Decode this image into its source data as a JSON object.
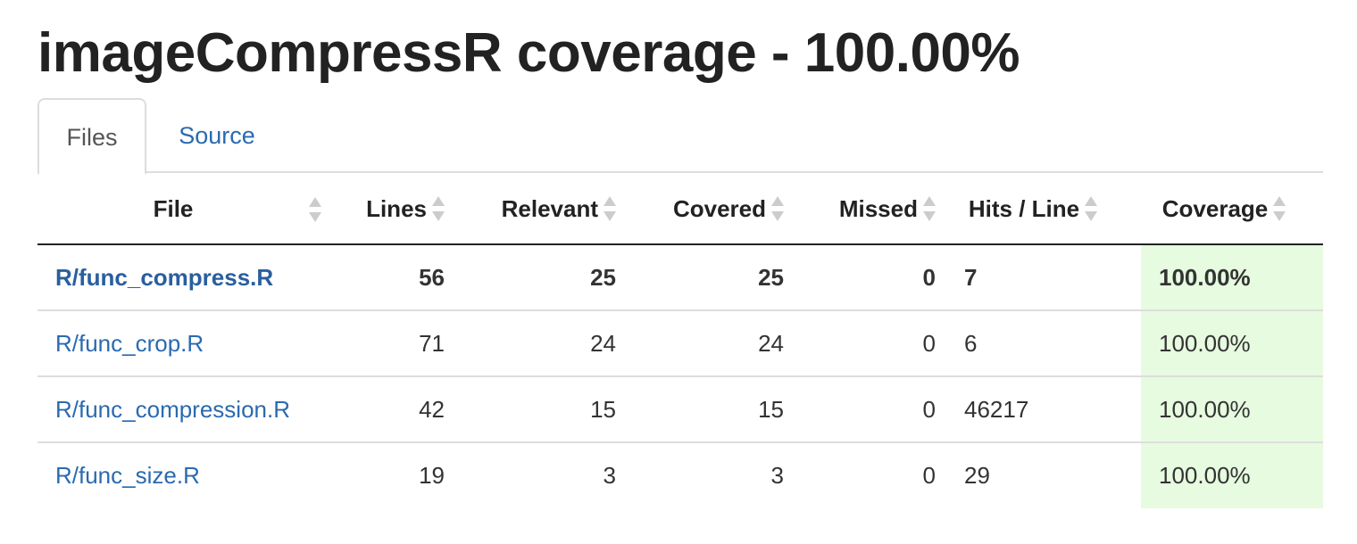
{
  "title": "imageCompressR coverage - 100.00%",
  "tabs": [
    {
      "label": "Files"
    },
    {
      "label": "Source"
    }
  ],
  "table": {
    "headers": [
      "File",
      "Lines",
      "Relevant",
      "Covered",
      "Missed",
      "Hits / Line",
      "Coverage"
    ],
    "rows": [
      {
        "file": "R/func_compress.R",
        "lines": "56",
        "relevant": "25",
        "covered": "25",
        "missed": "0",
        "hits": "7",
        "coverage": "100.00%"
      },
      {
        "file": "R/func_crop.R",
        "lines": "71",
        "relevant": "24",
        "covered": "24",
        "missed": "0",
        "hits": "6",
        "coverage": "100.00%"
      },
      {
        "file": "R/func_compression.R",
        "lines": "42",
        "relevant": "15",
        "covered": "15",
        "missed": "0",
        "hits": "46217",
        "coverage": "100.00%"
      },
      {
        "file": "R/func_size.R",
        "lines": "19",
        "relevant": "3",
        "covered": "3",
        "missed": "0",
        "hits": "29",
        "coverage": "100.00%"
      }
    ]
  },
  "colors": {
    "link": "#2a6ab0",
    "coverage_bg": "#e6fbdf"
  },
  "icons": {
    "sort": "sort-arrows-icon"
  }
}
